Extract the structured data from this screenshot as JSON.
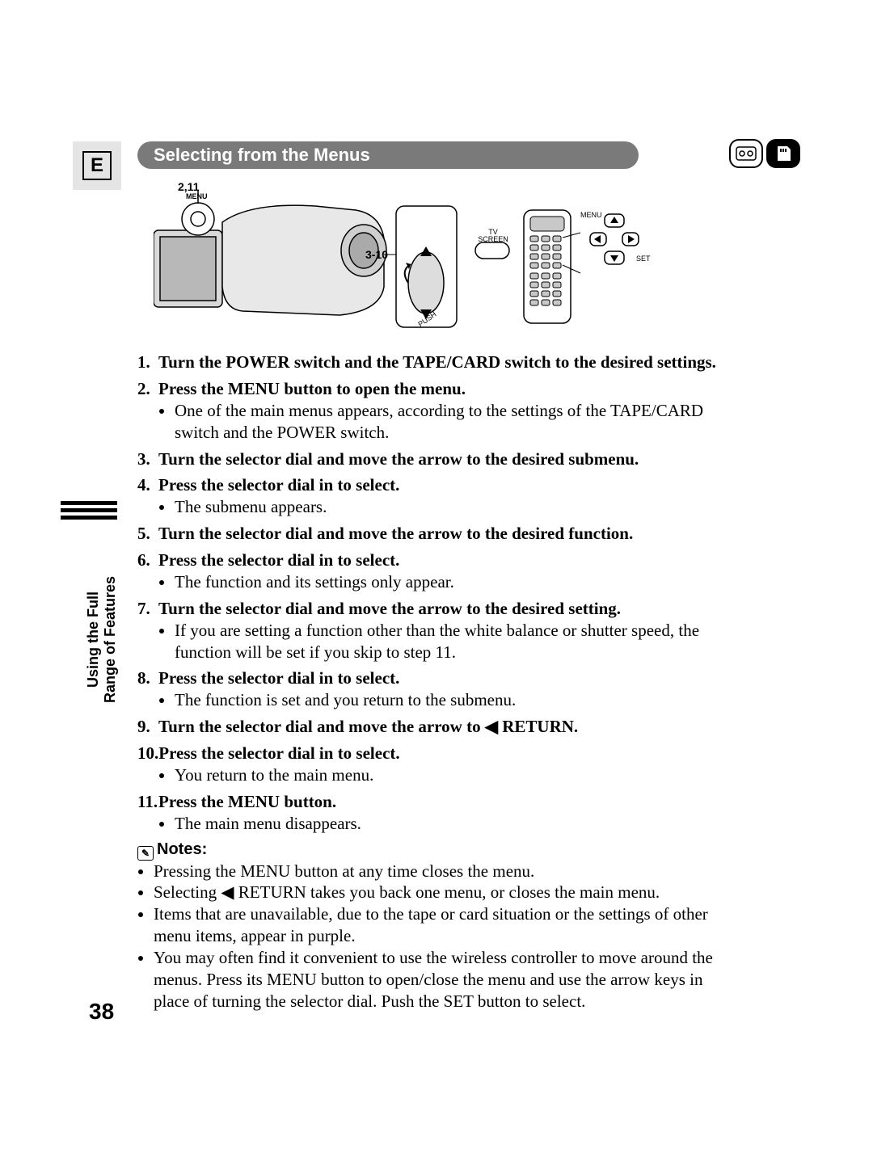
{
  "page": {
    "lang_badge": "E",
    "section_title": "Selecting from the Menus",
    "side_label_line1": "Using the Full",
    "side_label_line2": "Range of Features",
    "page_number": "38"
  },
  "illustration": {
    "label_top": "2,11",
    "label_menu_small": "MENU",
    "label_mid": "3-10",
    "tv_screen": "TV SCREEN",
    "remote_menu": "MENU",
    "remote_set": "SET",
    "push": "PUSH"
  },
  "steps": [
    {
      "n": "1.",
      "head": "Turn the POWER switch and the TAPE/CARD switch to the desired settings.",
      "bullets": []
    },
    {
      "n": "2.",
      "head": "Press the MENU button to open the menu.",
      "bullets": [
        "One of the main menus appears, according to the settings of the TAPE/CARD switch and the POWER switch."
      ]
    },
    {
      "n": "3.",
      "head": "Turn the selector dial and move the arrow to the desired submenu.",
      "bullets": []
    },
    {
      "n": "4.",
      "head": "Press the selector dial in to select.",
      "bullets": [
        "The submenu appears."
      ]
    },
    {
      "n": "5.",
      "head": "Turn the selector dial and move the arrow to the desired function.",
      "bullets": []
    },
    {
      "n": "6.",
      "head": "Press the selector dial in to select.",
      "bullets": [
        "The function and its settings only appear."
      ]
    },
    {
      "n": "7.",
      "head": "Turn the selector dial and move the arrow to the desired setting.",
      "bullets": [
        "If you are setting a function other than the white balance or shutter speed, the function will be set if you skip to step 11."
      ]
    },
    {
      "n": "8.",
      "head": "Press the selector dial in to select.",
      "bullets": [
        "The function is set and you return to the submenu."
      ]
    },
    {
      "n": "9.",
      "head_pre": "Turn the selector dial and move the arrow to ",
      "head_post": " RETURN.",
      "arrow": "◀",
      "bullets": []
    },
    {
      "n": "10.",
      "head": "Press the selector dial in to select.",
      "bullets": [
        "You return to the main menu."
      ]
    },
    {
      "n": "11.",
      "head": "Press the MENU button.",
      "bullets": [
        "The main menu disappears."
      ]
    }
  ],
  "notes": {
    "heading": "Notes:",
    "items": [
      "Pressing the MENU button at any time closes the menu.",
      "Selecting ◀ RETURN takes you back one menu, or closes the main menu.",
      "Items that are unavailable, due to the tape or card situation or the settings of other menu items, appear in purple.",
      "You may often find it convenient to use the wireless controller to move around the menus. Press its MENU button to open/close the menu and use the arrow keys in place of turning the selector dial. Push the SET button to select."
    ]
  },
  "colors": {
    "heading_bg": "#7a7a7a",
    "heading_text": "#ffffff",
    "page_bg": "#ffffff",
    "badge_bg": "#e5e5e5"
  }
}
